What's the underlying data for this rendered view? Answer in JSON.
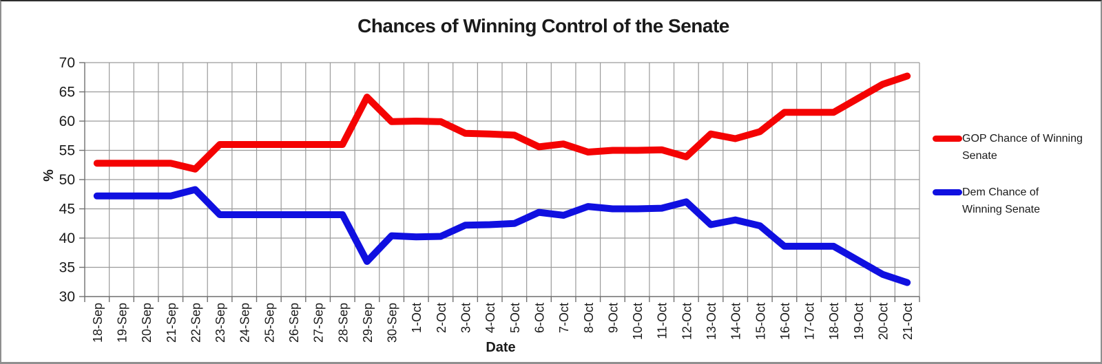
{
  "page": {
    "background": "#ffffff",
    "frame_border_color": "#8f8f8f"
  },
  "chart_data": {
    "type": "line",
    "title": "Chances of Winning Control of the Senate",
    "xlabel": "Date",
    "ylabel": "%",
    "ylim": [
      30,
      70
    ],
    "yticks": [
      30,
      35,
      40,
      45,
      50,
      55,
      60,
      65,
      70
    ],
    "grid": true,
    "grid_color": "#9a9a9a",
    "axis_color": "#6f6f6f",
    "tick_label_color": "#1a1a1a",
    "legend_position": "right",
    "categories": [
      "18-Sep",
      "19-Sep",
      "20-Sep",
      "21-Sep",
      "22-Sep",
      "23-Sep",
      "24-Sep",
      "25-Sep",
      "26-Sep",
      "27-Sep",
      "28-Sep",
      "29-Sep",
      "30-Sep",
      "1-Oct",
      "2-Oct",
      "3-Oct",
      "4-Oct",
      "5-Oct",
      "6-Oct",
      "7-Oct",
      "8-Oct",
      "9-Oct",
      "10-Oct",
      "11-Oct",
      "12-Oct",
      "13-Oct",
      "14-Oct",
      "15-Oct",
      "16-Oct",
      "17-Oct",
      "18-Oct",
      "19-Oct",
      "20-Oct",
      "21-Oct"
    ],
    "series": [
      {
        "name": "GOP Chance of Winning Senate",
        "color": "#f40303",
        "values": [
          52.8,
          52.8,
          52.8,
          52.8,
          51.8,
          56.0,
          56.0,
          56.0,
          56.0,
          56.0,
          56.0,
          64.1,
          59.9,
          60.0,
          59.9,
          57.9,
          57.8,
          57.6,
          55.6,
          56.1,
          54.7,
          55.0,
          55.0,
          55.1,
          53.9,
          57.8,
          57.0,
          58.2,
          61.5,
          61.5,
          61.5,
          63.9,
          66.3,
          67.7
        ]
      },
      {
        "name": "Dem Chance of Winning Senate",
        "color": "#1010e0",
        "values": [
          47.2,
          47.2,
          47.2,
          47.2,
          48.3,
          44.0,
          44.0,
          44.0,
          44.0,
          44.0,
          44.0,
          36.0,
          40.4,
          40.2,
          40.3,
          42.2,
          42.3,
          42.5,
          44.4,
          43.9,
          45.4,
          45.0,
          45.0,
          45.1,
          46.2,
          42.3,
          43.1,
          42.1,
          38.6,
          38.6,
          38.6,
          36.2,
          33.8,
          32.4
        ]
      }
    ]
  },
  "axes": {
    "x_title": "Date",
    "y_title": "%"
  },
  "legend": {
    "entries": [
      {
        "lines": [
          "GOP Chance of Winning",
          "Senate"
        ]
      },
      {
        "lines": [
          "Dem Chance of",
          "Winning Senate"
        ]
      }
    ]
  }
}
